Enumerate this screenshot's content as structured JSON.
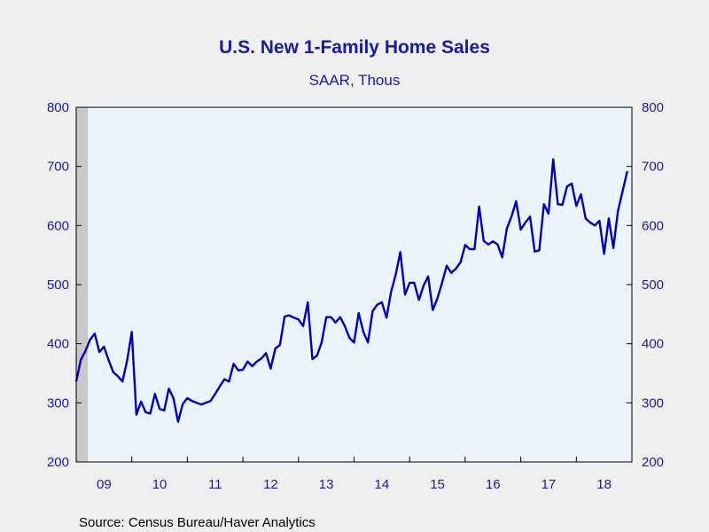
{
  "chart_data": {
    "type": "line",
    "title": "U.S. New 1-Family Home Sales",
    "subtitle": "SAAR, Thous",
    "source": "Source:  Census Bureau/Haver Analytics",
    "ylim": [
      200,
      800
    ],
    "yticks": [
      200,
      300,
      400,
      500,
      600,
      700,
      800
    ],
    "xlim": [
      2009.0,
      2019.0
    ],
    "x_categories": [
      "09",
      "10",
      "11",
      "12",
      "13",
      "14",
      "15",
      "16",
      "17",
      "18"
    ],
    "recession_shading": [
      2009.0,
      2009.21
    ],
    "grid": false,
    "legend": "none",
    "colors": {
      "line": "#0000b8",
      "plot_bg": "#eaf4fd",
      "recession": "#c8c8c8",
      "text": "#1a1aa6"
    },
    "series": [
      {
        "start": "2009-01",
        "frequency": "monthly",
        "values": [
          336,
          373,
          388,
          407,
          417,
          386,
          395,
          372,
          352,
          345,
          336,
          372,
          420,
          280,
          302,
          284,
          282,
          315,
          290,
          287,
          324,
          308,
          268,
          298,
          308,
          303,
          300,
          297,
          300,
          303,
          315,
          328,
          340,
          336,
          366,
          355,
          356,
          370,
          362,
          370,
          375,
          384,
          358,
          392,
          398,
          446,
          448,
          444,
          441,
          430,
          470,
          374,
          380,
          402,
          445,
          445,
          436,
          445,
          430,
          410,
          402,
          452,
          420,
          402,
          455,
          466,
          470,
          444,
          488,
          517,
          555,
          483,
          503,
          503,
          474,
          498,
          514,
          457,
          477,
          503,
          532,
          520,
          527,
          538,
          567,
          560,
          560,
          632,
          574,
          568,
          573,
          568,
          546,
          595,
          615,
          641,
          593,
          605,
          615,
          556,
          558,
          636,
          620,
          712,
          636,
          635,
          666,
          671,
          633,
          653,
          612,
          605,
          600,
          608,
          552,
          612,
          562,
          625,
          658,
          692
        ]
      }
    ]
  }
}
